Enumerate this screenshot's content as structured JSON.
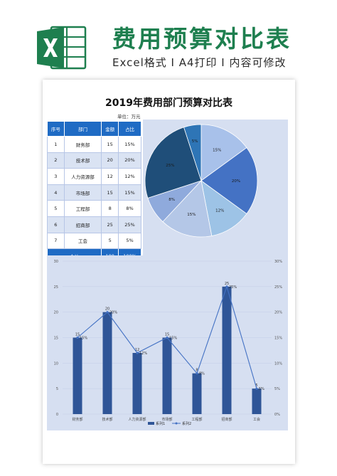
{
  "banner": {
    "title": "费用预算对比表",
    "subtitle": "Excel格式 I A4打印 I 内容可修改"
  },
  "sheet": {
    "title": "2019年费用部门预算对比表",
    "unit": "单位：万元",
    "table": {
      "headers": [
        "序号",
        "部门",
        "金额",
        "占比"
      ],
      "rows": [
        [
          "1",
          "财务部",
          "15",
          "15%"
        ],
        [
          "2",
          "技术部",
          "20",
          "20%"
        ],
        [
          "3",
          "人力资源部",
          "12",
          "12%"
        ],
        [
          "4",
          "市场部",
          "15",
          "15%"
        ],
        [
          "5",
          "工程部",
          "8",
          "8%"
        ],
        [
          "6",
          "招商部",
          "25",
          "25%"
        ],
        [
          "7",
          "工会",
          "5",
          "5%"
        ]
      ],
      "total": [
        "合计",
        "100",
        "100%"
      ]
    }
  },
  "chart_data": [
    {
      "type": "pie",
      "values": [
        15,
        20,
        12,
        15,
        8,
        25,
        5
      ],
      "labels": [
        "15%",
        "20%",
        "12%",
        "15%",
        "8%",
        "25%",
        "5%"
      ],
      "colors": [
        "#a8c1ea",
        "#4472c4",
        "#9dc3e6",
        "#b4c7e7",
        "#8faadc",
        "#1f4e79",
        "#2e75b6"
      ]
    },
    {
      "type": "bar",
      "categories": [
        "财务部",
        "技术部",
        "人力资源部",
        "市场部",
        "工程部",
        "招商部",
        "工会"
      ],
      "series": [
        {
          "name": "系列1",
          "type": "bar",
          "values": [
            15,
            20,
            12,
            15,
            8,
            25,
            5
          ],
          "labels": [
            "15",
            "20",
            "12",
            "15",
            "8",
            "25",
            "5"
          ],
          "color": "#2f5597"
        },
        {
          "name": "系列2",
          "type": "line",
          "axis": "secondary",
          "values": [
            0.15,
            0.2,
            0.12,
            0.15,
            0.08,
            0.25,
            0.05
          ],
          "labels": [
            "15%",
            "20%",
            "12%",
            "15%",
            "8%",
            "25%",
            "5%"
          ],
          "color": "#4472c4"
        }
      ],
      "ylim": [
        0,
        30
      ],
      "yticks": [
        "0",
        "5",
        "10",
        "15",
        "20",
        "25",
        "30"
      ],
      "y2lim": [
        0,
        0.3
      ],
      "y2ticks": [
        "0%",
        "5%",
        "10%",
        "15%",
        "20%",
        "25%",
        "30%"
      ],
      "legend_position": "bottom"
    }
  ]
}
